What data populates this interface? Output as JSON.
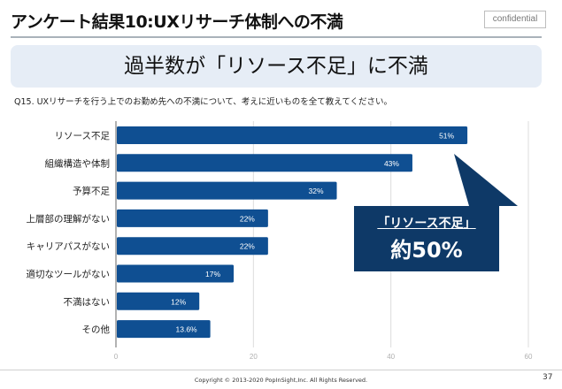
{
  "header": {
    "title": "アンケート結果10:UXリサーチ体制への不満",
    "badge": "confidential"
  },
  "banner": {
    "headline": "過半数が「リソース不足」に不満"
  },
  "question": "Q15.  UXリサーチを行う上でのお勤め先への不満について、考えに近いものを全て教えてください。",
  "callout": {
    "label": "「リソース不足」",
    "value": "約50%"
  },
  "footer": {
    "copyright": "Copyright © 2013-2020  PopInSight,Inc.  All Rights Reserved.",
    "page_number": "37"
  },
  "colors": {
    "bar": "#0f4f92",
    "callout": "#0e3967",
    "banner": "#e6edf6"
  },
  "chart_data": {
    "type": "bar",
    "orientation": "horizontal",
    "categories": [
      "リソース不足",
      "組織構造や体制",
      "予算不足",
      "上層部の理解がない",
      "キャリアパスがない",
      "適切なツールがない",
      "不満はない",
      "その他"
    ],
    "values": [
      51,
      43,
      32,
      22,
      22,
      17,
      12,
      13.6
    ],
    "data_labels": [
      "51%",
      "43%",
      "32%",
      "22%",
      "22%",
      "17%",
      "12%",
      "13.6%"
    ],
    "xlim": [
      0,
      60
    ],
    "xticks": [
      0,
      20,
      40,
      60
    ],
    "xtick_labels": [
      "0",
      "20",
      "40",
      "60"
    ],
    "grid": true,
    "title": "",
    "xlabel": "",
    "ylabel": ""
  }
}
